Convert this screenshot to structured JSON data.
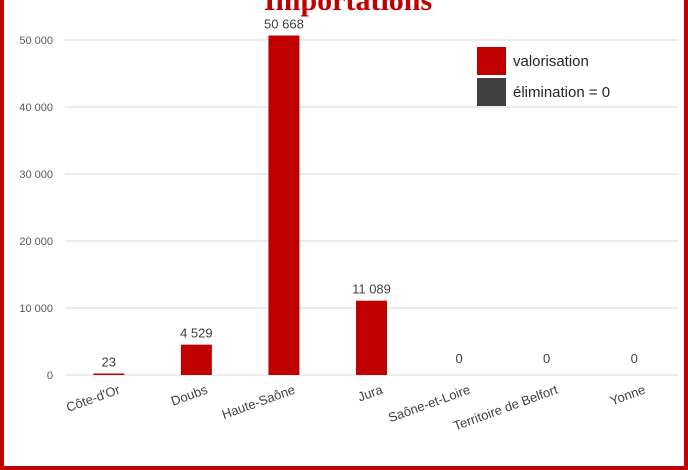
{
  "chart_data": {
    "type": "bar",
    "title": "Importations",
    "categories": [
      "Côte-d'Or",
      "Doubs",
      "Haute-Saône",
      "Jura",
      "Saône-et-Loire",
      "Territoire de Belfort",
      "Yonne"
    ],
    "series": [
      {
        "name": "valorisation",
        "color": "#c00000",
        "values": [
          23,
          4529,
          50668,
          11089,
          0,
          0,
          0
        ]
      },
      {
        "name": "élimination = 0",
        "color": "#404040",
        "values": [
          0,
          0,
          0,
          0,
          0,
          0,
          0
        ]
      }
    ],
    "data_labels": [
      "23",
      "4 529",
      "50 668",
      "11 089",
      "0",
      "0",
      "0"
    ],
    "ylim": [
      0,
      50000
    ],
    "yticks": [
      0,
      10000,
      20000,
      30000,
      40000,
      50000
    ],
    "ytick_labels": [
      "0",
      "10 000",
      "20 000",
      "30 000",
      "40 000",
      "50 000"
    ],
    "grid": true,
    "legend_position": "top-right"
  }
}
